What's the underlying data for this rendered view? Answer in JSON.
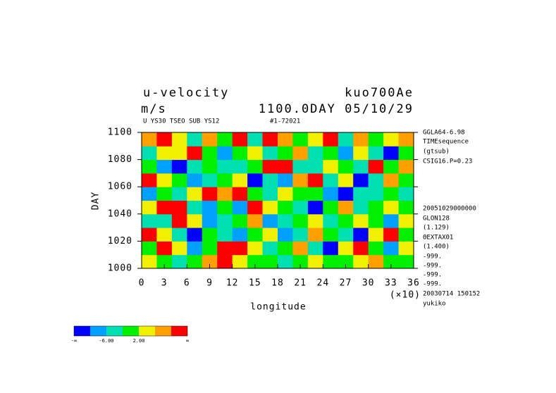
{
  "chart_data": {
    "type": "heatmap",
    "title": "u-velocity",
    "subtitle": "m/s",
    "run_name": "kuo700Ae",
    "time_label": "1100.0DAY 05/10/29",
    "variable_note": "U YS30 TSEO SUB YS12",
    "range_note": "#1-72021",
    "side_notes": [
      "GGLA64-6.98",
      "TIMEsequence",
      "(gtsub)",
      "CSIG16.P=0.23",
      "20051029000000",
      "GLON128",
      "(1.129)",
      "ΘEXTAX01",
      "(1.400)",
      "-999.",
      "-999.",
      "-999.",
      "-999.",
      "20030714 150152",
      "yukiko"
    ],
    "x_label": "longitude",
    "x_scale_note": "(×10)",
    "y_label": "DAY",
    "xlim": [
      0,
      36
    ],
    "xticks": [
      0,
      3,
      6,
      9,
      12,
      15,
      18,
      21,
      24,
      27,
      30,
      33,
      36
    ],
    "ylim": [
      1000,
      1100
    ],
    "yticks": [
      1000,
      1020,
      1040,
      1060,
      1080,
      1100
    ],
    "x": [
      1,
      3,
      5,
      7,
      9,
      11,
      13,
      15,
      17,
      19,
      21,
      23,
      25,
      27,
      29,
      31,
      33,
      35
    ],
    "y": [
      1005,
      1015,
      1025,
      1035,
      1045,
      1055,
      1065,
      1075,
      1085,
      1095
    ],
    "z": [
      [
        4,
        0,
        -3,
        1,
        8,
        12,
        3,
        -2,
        0,
        -4,
        1,
        5,
        -2,
        0,
        3,
        6,
        -1,
        0
      ],
      [
        -1,
        12,
        5,
        -8,
        0,
        11,
        13,
        2,
        -3,
        -1,
        7,
        -5,
        -12,
        4,
        11,
        -2,
        -7,
        2
      ],
      [
        11,
        3,
        -4,
        -11,
        1,
        -3,
        -7,
        -2,
        4,
        -9,
        -3,
        9,
        1,
        -4,
        -12,
        3,
        12,
        0
      ],
      [
        -3,
        -6,
        10,
        2,
        -10,
        -3,
        1,
        8,
        -8,
        -3,
        -1,
        3,
        -6,
        -2,
        4,
        -1,
        -9,
        5
      ],
      [
        2,
        12,
        11,
        -4,
        -7,
        -2,
        -10,
        12,
        5,
        -2,
        -6,
        -11,
        -2,
        6,
        -3,
        1,
        2,
        -2
      ],
      [
        -8,
        -2,
        -6,
        3,
        11,
        9,
        12,
        -1,
        -3,
        4,
        -1,
        0,
        -8,
        -12,
        -3,
        -5,
        1,
        -4
      ],
      [
        11,
        2,
        -1,
        -10,
        -3,
        -1,
        2,
        -11,
        -4,
        -8,
        9,
        13,
        -6,
        2,
        -11,
        -3,
        8,
        -1
      ],
      [
        -2,
        -7,
        -11,
        -4,
        1,
        -3,
        -6,
        -2,
        10,
        12,
        -3,
        -5,
        4,
        -1,
        -4,
        10,
        -2,
        6
      ],
      [
        -5,
        4,
        2,
        10,
        -2,
        -8,
        -1,
        3,
        -4,
        -2,
        8,
        -6,
        -1,
        -7,
        3,
        -3,
        -12,
        -1
      ],
      [
        6,
        12,
        3,
        -4,
        7,
        -1,
        10,
        -3,
        11,
        6,
        -2,
        4,
        12,
        -5,
        8,
        -2,
        3,
        9
      ]
    ],
    "levels": [
      -10,
      -6,
      -2,
      2,
      6,
      10
    ],
    "colors": [
      "#0000ff",
      "#00a0ff",
      "#00e0b0",
      "#00f000",
      "#f0f000",
      "#ffa000",
      "#ff0000"
    ],
    "colorbar_labels": [
      "-∞",
      "-6.00",
      "2.00",
      "∞"
    ]
  }
}
